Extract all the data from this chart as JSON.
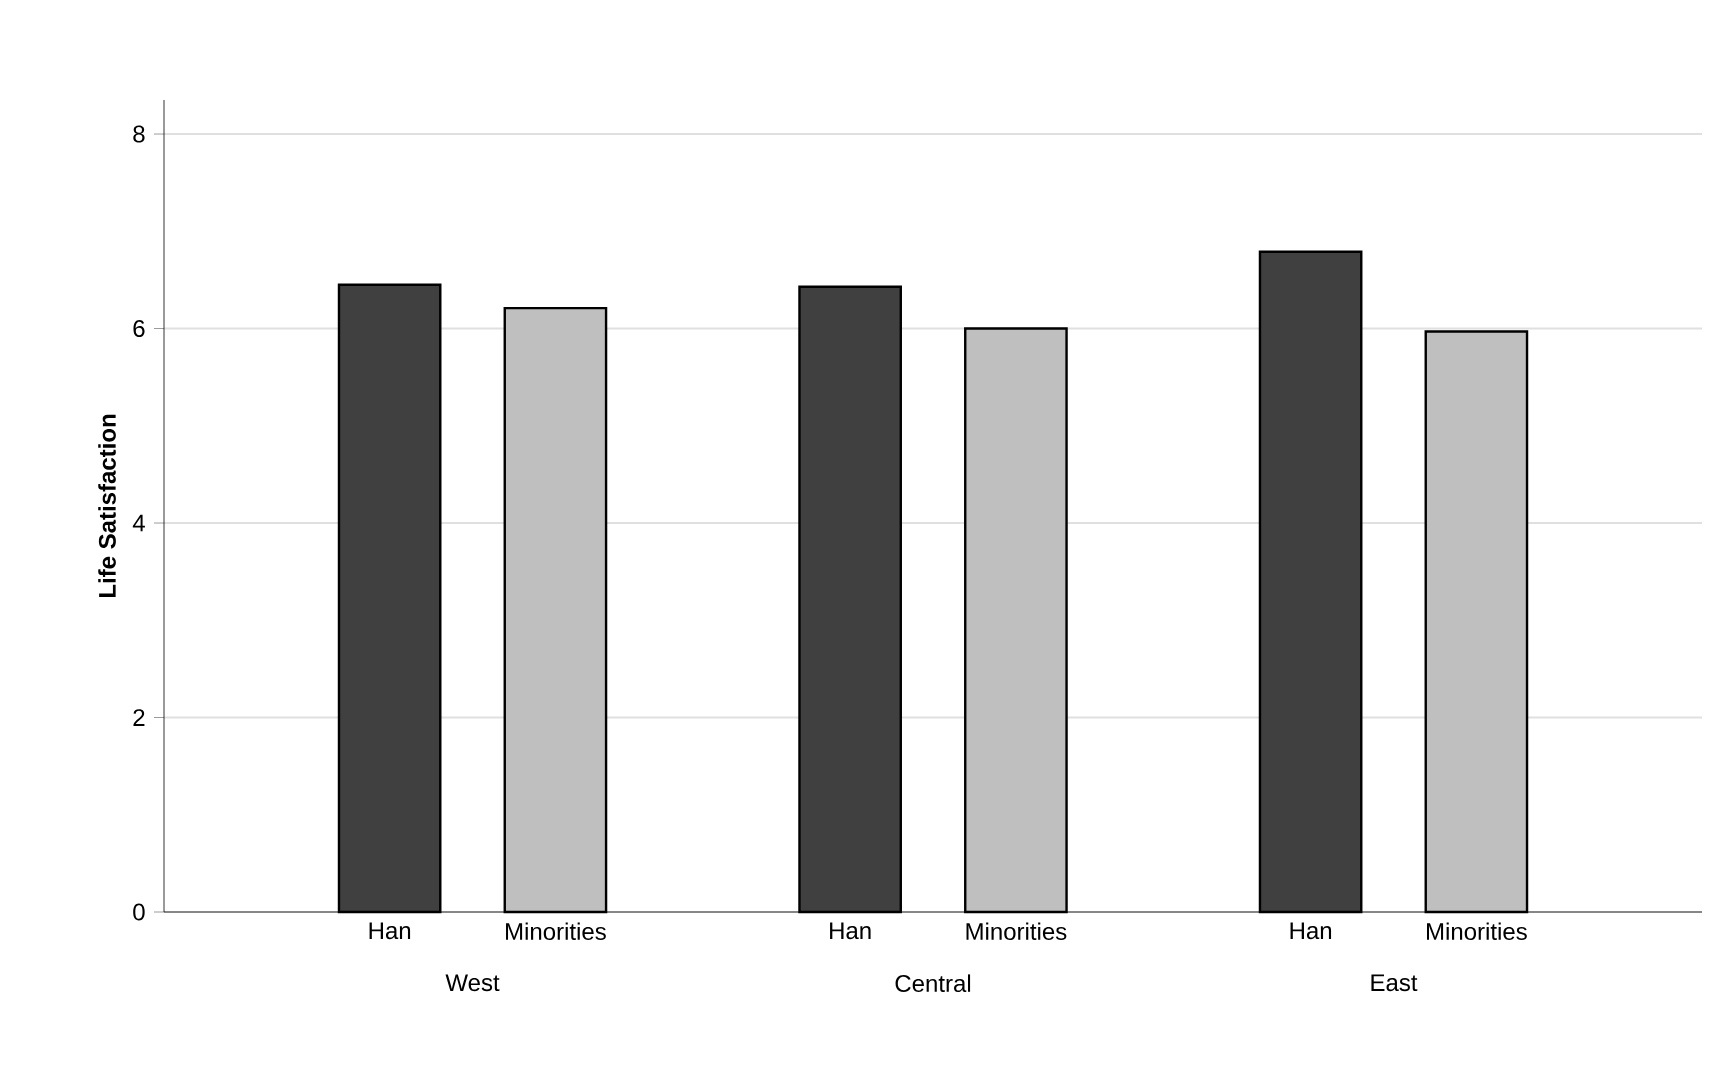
{
  "chart_data": {
    "type": "bar",
    "ylabel": "Life Satisfaction",
    "categories": [
      "West",
      "Central",
      "East"
    ],
    "series": [
      {
        "name": "Han",
        "color": "#404040",
        "values": [
          6.45,
          6.43,
          6.79
        ]
      },
      {
        "name": "Minorities",
        "color": "#bfbfbf",
        "values": [
          6.21,
          6.0,
          5.97
        ]
      }
    ],
    "ylim": [
      0,
      8.35
    ],
    "yticks": [
      0,
      2,
      4,
      6,
      8
    ],
    "grid": "y"
  }
}
